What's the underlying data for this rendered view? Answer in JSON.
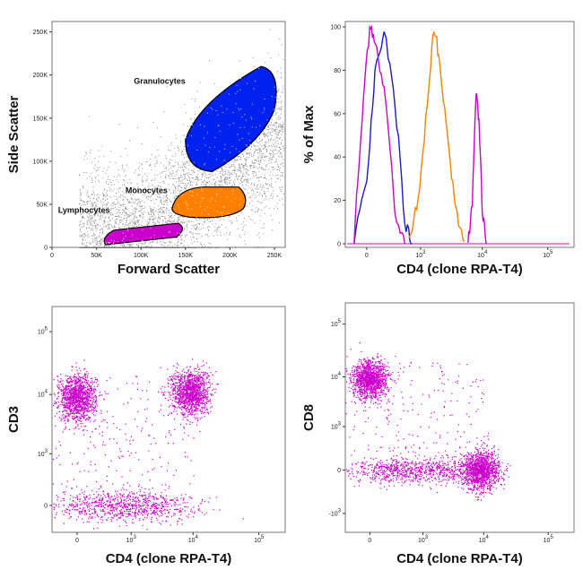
{
  "chart_data": [
    {
      "type": "scatter",
      "xlabel": "Forward Scatter",
      "ylabel": "Side Scatter",
      "xlim": [
        0,
        262143
      ],
      "ylim": [
        0,
        262143
      ],
      "x_ticks": [
        "0",
        "50K",
        "100K",
        "150K",
        "200K",
        "250K"
      ],
      "y_ticks": [
        "0",
        "50K",
        "100K",
        "150K",
        "200K",
        "250K"
      ],
      "colors": {
        "events": "#8c8c8c",
        "Lymphocytes": "#cc00cc",
        "Monocytes": "#ff8000",
        "Granulocytes": "#0022ee"
      },
      "gates": [
        {
          "name": "Lymphocytes",
          "fsc_range": [
            55000,
            150000
          ],
          "ssc_range": [
            0,
            30000
          ]
        },
        {
          "name": "Monocytes",
          "fsc_range": [
            135000,
            220000
          ],
          "ssc_range": [
            35000,
            70000
          ]
        },
        {
          "name": "Granulocytes",
          "fsc_range": [
            150000,
            255000
          ],
          "ssc_range": [
            90000,
            210000
          ]
        }
      ]
    },
    {
      "type": "line",
      "xlabel": "CD4 (clone RPA-T4)",
      "ylabel": "% of Max",
      "x_scale": "biexponential",
      "x_ticks": [
        "0",
        "10^3",
        "10^4",
        "10^5"
      ],
      "y_ticks": [
        "0",
        "20",
        "40",
        "60",
        "80",
        "100"
      ],
      "ylim": [
        0,
        100
      ],
      "series": [
        {
          "color": "#1a1acc",
          "x": [
            -100,
            0,
            60,
            150,
            300,
            500,
            700
          ],
          "y": [
            0,
            30,
            80,
            100,
            65,
            10,
            0
          ]
        },
        {
          "color": "#cc00cc",
          "x": [
            -100,
            -30,
            20,
            60,
            150,
            300,
            500
          ],
          "y": [
            0,
            60,
            100,
            95,
            70,
            15,
            0
          ]
        },
        {
          "color": "#ff8000",
          "x": [
            600,
            900,
            1300,
            1700,
            2100,
            2800,
            3800,
            5200
          ],
          "y": [
            2,
            20,
            65,
            100,
            85,
            50,
            15,
            1
          ]
        },
        {
          "color": "#cc00cc",
          "x": [
            6000,
            7000,
            8000,
            9000,
            10000,
            11500
          ],
          "y": [
            0,
            20,
            70,
            55,
            15,
            0
          ]
        }
      ]
    },
    {
      "type": "scatter",
      "xlabel": "CD4 (clone RPA-T4)",
      "ylabel": "CD3",
      "x_scale": "biexponential",
      "y_scale": "biexponential",
      "x_ticks": [
        "0",
        "10^3",
        "10^4",
        "10^5"
      ],
      "y_ticks": [
        "0",
        "10^3",
        "10^4",
        "10^5"
      ],
      "color": "#cc00cc",
      "populations": [
        {
          "cd4": 0,
          "cd3": 9000
        },
        {
          "cd4": 9000,
          "cd3": 11000
        },
        {
          "cd4": 0,
          "cd3": 0
        }
      ]
    },
    {
      "type": "scatter",
      "xlabel": "CD4 (clone RPA-T4)",
      "ylabel": "CD8",
      "x_scale": "biexponential",
      "y_scale": "biexponential",
      "x_ticks": [
        "0",
        "10^3",
        "10^4",
        "10^5"
      ],
      "y_ticks": [
        "-10^3",
        "0",
        "10^3",
        "10^4",
        "10^5"
      ],
      "color": "#cc00cc",
      "populations": [
        {
          "cd4": 0,
          "cd8": 9000
        },
        {
          "cd4": 9000,
          "cd8": 0
        },
        {
          "cd4": 0,
          "cd8": 0
        }
      ]
    }
  ]
}
